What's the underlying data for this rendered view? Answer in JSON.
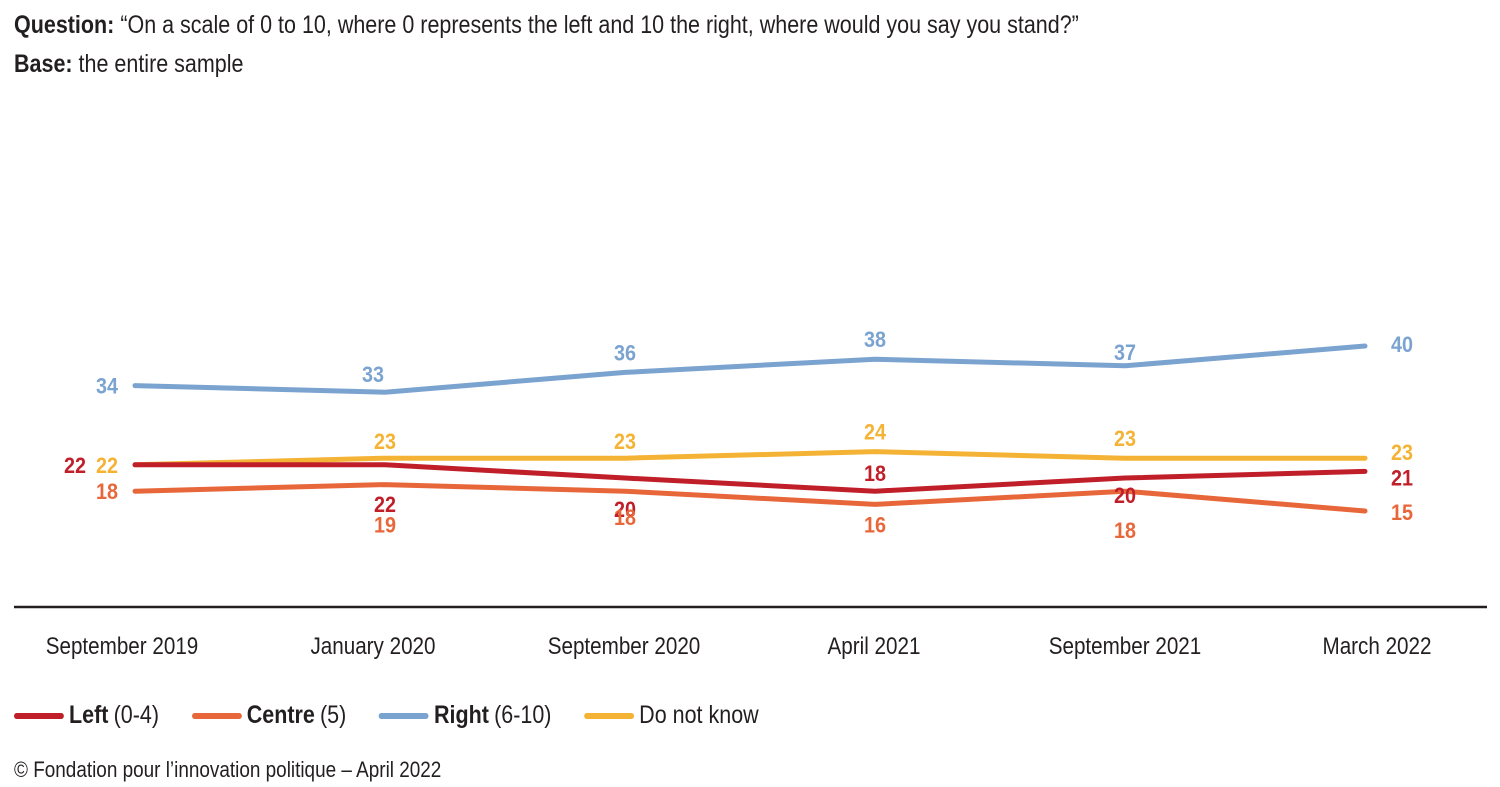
{
  "header": {
    "question_label": "Question:",
    "question_text": "“On a scale of 0 to 10, where 0 represents the left and 10 the right, where would you say you stand?”",
    "base_label": "Base:",
    "base_text": "the entire sample"
  },
  "chart_data": {
    "type": "line",
    "title": "On a scale of 0 to 10, where 0 represents the left and 10 the right, where would you say you stand?",
    "xlabel": "",
    "ylabel": "",
    "categories": [
      "September 2019",
      "January 2020",
      "September 2020",
      "April 2021",
      "September 2021",
      "March 2022"
    ],
    "series": [
      {
        "key": "right",
        "name": "Right",
        "name_suffix": "(6-10)",
        "color": "#7ba3d0",
        "values": [
          34,
          33,
          36,
          38,
          37,
          40
        ]
      },
      {
        "key": "dnk",
        "name": "Do not know",
        "name_suffix": "",
        "color": "#f5b335",
        "values": [
          22,
          23,
          23,
          24,
          23,
          23
        ]
      },
      {
        "key": "left",
        "name": "Left",
        "name_suffix": "(0-4)",
        "color": "#c01f2a",
        "values": [
          22,
          22,
          20,
          18,
          20,
          21
        ]
      },
      {
        "key": "centre",
        "name": "Centre",
        "name_suffix": "(5)",
        "color": "#e8673a",
        "values": [
          18,
          19,
          18,
          16,
          18,
          15
        ]
      }
    ],
    "legend_position": "bottom-left",
    "grid": false,
    "axis_color": "#231f20"
  },
  "legend": [
    {
      "bold": "Left",
      "rest": "(0-4)",
      "color": "#c01f2a"
    },
    {
      "bold": "Centre",
      "rest": "(5)",
      "color": "#e8673a"
    },
    {
      "bold": "Right",
      "rest": "(6-10)",
      "color": "#7ba3d0"
    },
    {
      "bold": "",
      "rest": "Do not know",
      "color": "#f5b335"
    }
  ],
  "credit": "© Fondation pour l’innovation politique – April 2022"
}
